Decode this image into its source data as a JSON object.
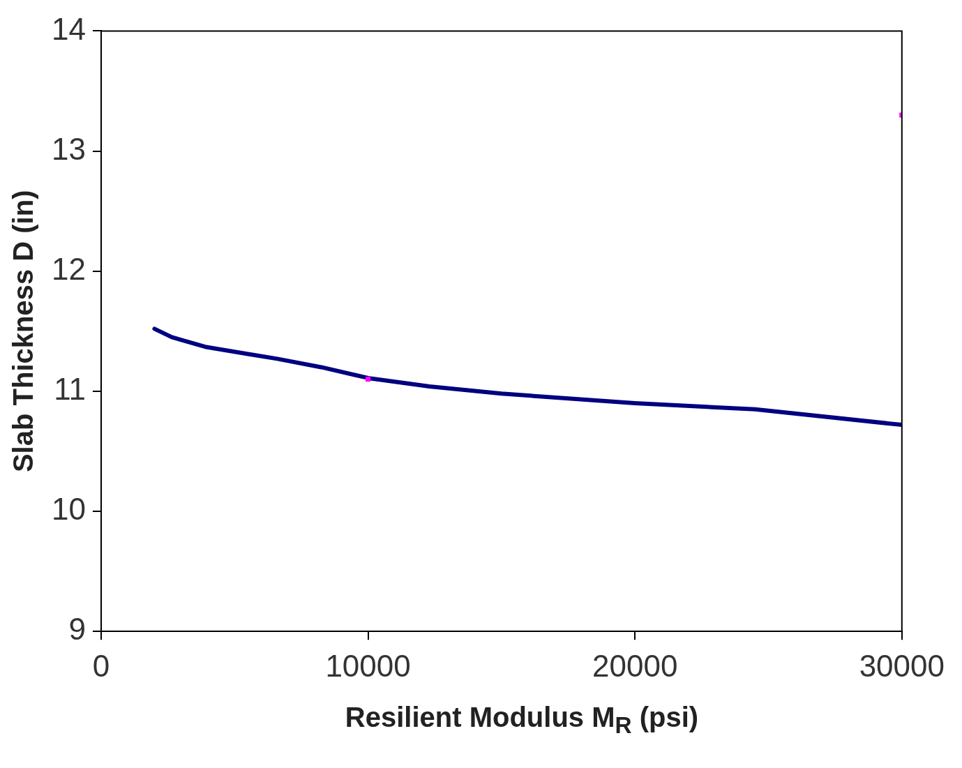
{
  "chart_data": {
    "type": "line",
    "xlabel": "Resilient Modulus M$_{R}$ (psi)",
    "ylabel": "Slab Thickness D (in)",
    "xlim": [
      0,
      30000
    ],
    "xticks": [
      0,
      10000,
      20000,
      30000
    ],
    "ylim": [
      9,
      14
    ],
    "yticks": [
      9,
      10,
      11,
      12,
      13,
      14
    ],
    "grid": false,
    "legend": false,
    "line_style": "solid",
    "series": [
      {
        "type": "line",
        "color": "#000080",
        "marker": "none",
        "x": [
          2000,
          2650,
          3900,
          5500,
          6600,
          8250,
          10000,
          12300,
          15000,
          20000,
          24500,
          30000
        ],
        "values": [
          11.52,
          11.45,
          11.37,
          11.31,
          11.27,
          11.2,
          11.11,
          11.04,
          10.98,
          10.9,
          10.85,
          10.72
        ]
      },
      {
        "type": "scatter",
        "color": "#ff00ff",
        "marker": "square",
        "x": [
          10000,
          30000
        ],
        "values": [
          11.1,
          13.3
        ]
      }
    ]
  }
}
